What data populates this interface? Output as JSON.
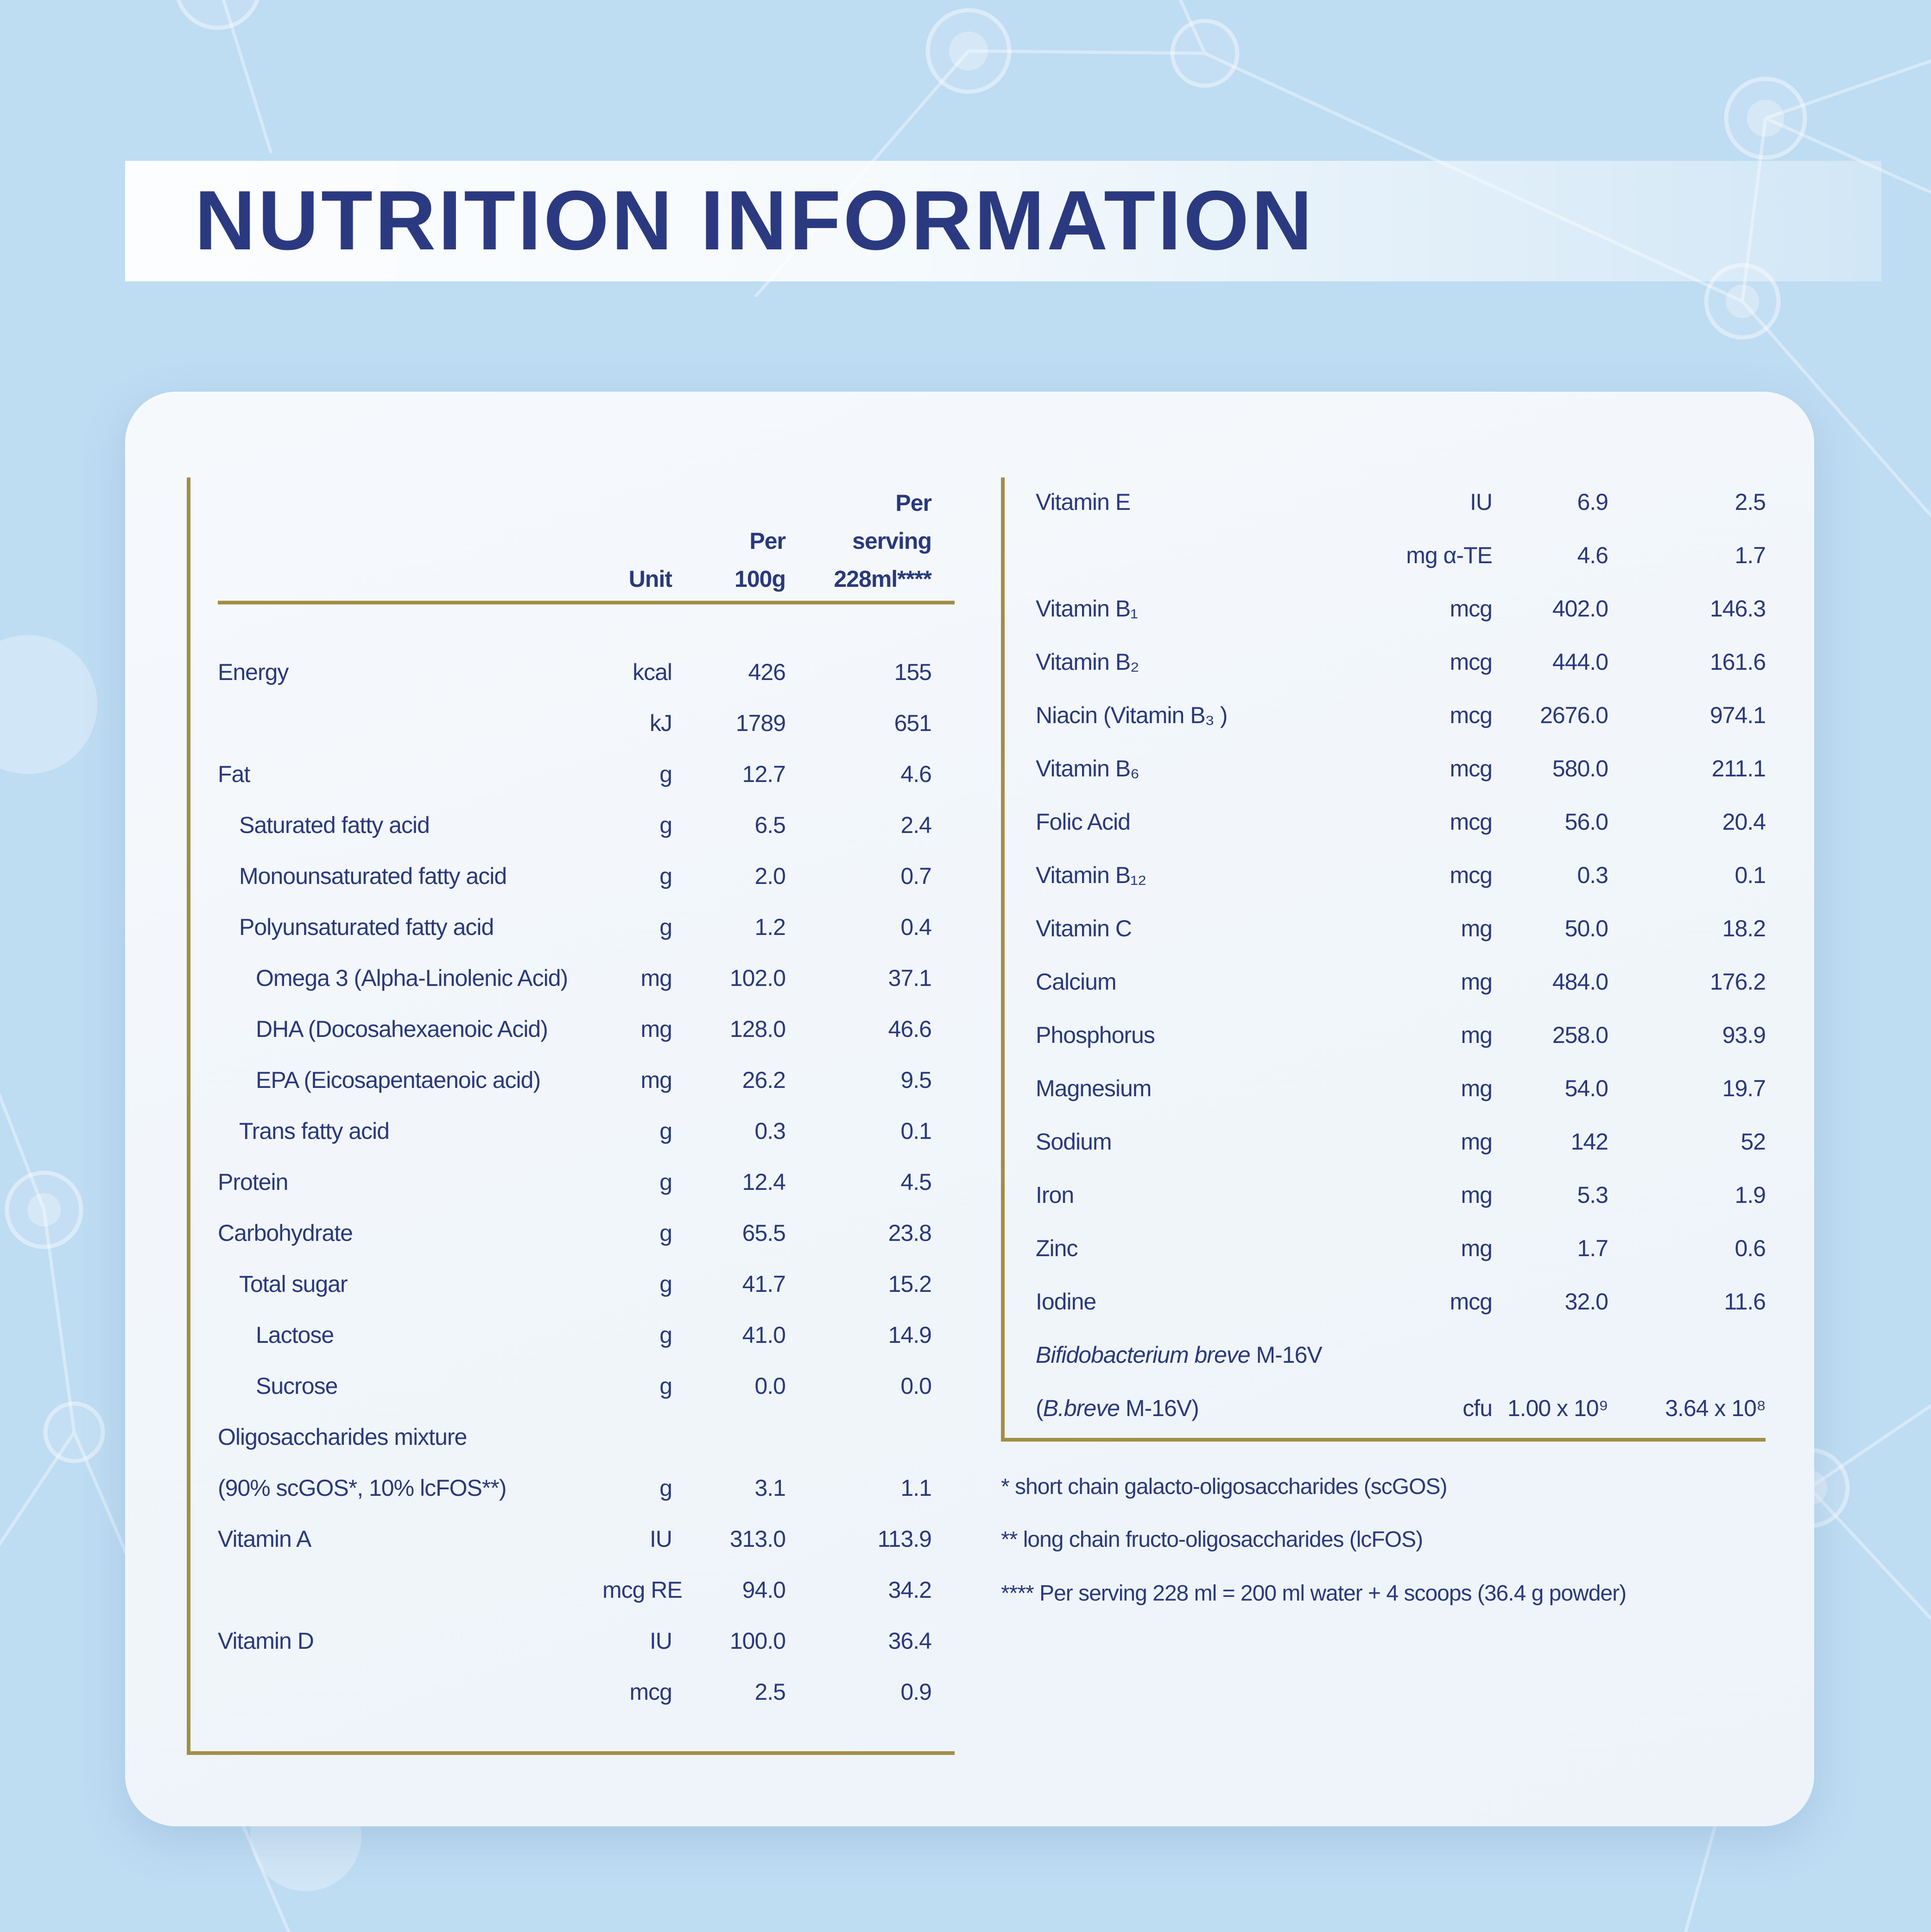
{
  "title": "NUTRITION INFORMATION",
  "colors": {
    "background_blue": "#bedcf2",
    "card_background": "#f2f6fb",
    "navy_text": "#2b3a7e",
    "gold_rule": "#a28e46"
  },
  "table_left": {
    "headers": {
      "unit": "Unit",
      "per_100g": "Per\n100g",
      "per_serving": "Per\nserving\n228ml****"
    },
    "rows": [
      {
        "label": "Energy",
        "indent": 0,
        "unit": "kcal",
        "per_100g": "426",
        "per_serving": "155"
      },
      {
        "label": "",
        "indent": 0,
        "unit": "kJ",
        "per_100g": "1789",
        "per_serving": "651"
      },
      {
        "label": "Fat",
        "indent": 0,
        "unit": "g",
        "per_100g": "12.7",
        "per_serving": "4.6"
      },
      {
        "label": "Saturated fatty acid",
        "indent": 1,
        "unit": "g",
        "per_100g": "6.5",
        "per_serving": "2.4"
      },
      {
        "label": "Monounsaturated fatty acid",
        "indent": 1,
        "unit": "g",
        "per_100g": "2.0",
        "per_serving": "0.7"
      },
      {
        "label": "Polyunsaturated fatty acid",
        "indent": 1,
        "unit": "g",
        "per_100g": "1.2",
        "per_serving": "0.4"
      },
      {
        "label": "Omega 3 (Alpha-Linolenic Acid)",
        "indent": 2,
        "unit": "mg",
        "per_100g": "102.0",
        "per_serving": "37.1"
      },
      {
        "label": "DHA (Docosahexaenoic Acid)",
        "indent": 2,
        "unit": "mg",
        "per_100g": "128.0",
        "per_serving": "46.6"
      },
      {
        "label": "EPA (Eicosapentaenoic acid)",
        "indent": 2,
        "unit": "mg",
        "per_100g": "26.2",
        "per_serving": "9.5"
      },
      {
        "label": "Trans fatty acid",
        "indent": 1,
        "unit": "g",
        "per_100g": "0.3",
        "per_serving": "0.1"
      },
      {
        "label": "Protein",
        "indent": 0,
        "unit": "g",
        "per_100g": "12.4",
        "per_serving": "4.5"
      },
      {
        "label": "Carbohydrate",
        "indent": 0,
        "unit": "g",
        "per_100g": "65.5",
        "per_serving": "23.8"
      },
      {
        "label": "Total sugar",
        "indent": 1,
        "unit": "g",
        "per_100g": "41.7",
        "per_serving": "15.2"
      },
      {
        "label": "Lactose",
        "indent": 2,
        "unit": "g",
        "per_100g": "41.0",
        "per_serving": "14.9"
      },
      {
        "label": "Sucrose",
        "indent": 2,
        "unit": "g",
        "per_100g": "0.0",
        "per_serving": "0.0"
      },
      {
        "label": "Oligosaccharides mixture",
        "indent": 0,
        "unit": "",
        "per_100g": "",
        "per_serving": ""
      },
      {
        "label": "(90% scGOS*, 10% lcFOS**)",
        "indent": 0,
        "unit": "g",
        "per_100g": "3.1",
        "per_serving": "1.1"
      },
      {
        "label": "Vitamin A",
        "indent": 0,
        "unit": "IU",
        "per_100g": "313.0",
        "per_serving": "113.9"
      },
      {
        "label": "",
        "indent": 0,
        "unit": "mcg RE",
        "per_100g": "94.0",
        "per_serving": "34.2"
      },
      {
        "label": "Vitamin D",
        "indent": 0,
        "unit": "IU",
        "per_100g": "100.0",
        "per_serving": "36.4"
      },
      {
        "label": "",
        "indent": 0,
        "unit": "mcg",
        "per_100g": "2.5",
        "per_serving": "0.9"
      }
    ]
  },
  "table_right": {
    "rows": [
      {
        "label": "Vitamin E",
        "indent": 0,
        "unit": "IU",
        "per_100g": "6.9",
        "per_serving": "2.5"
      },
      {
        "label": "",
        "indent": 0,
        "unit": "mg α-TE",
        "per_100g": "4.6",
        "per_serving": "1.7"
      },
      {
        "label": "Vitamin B₁",
        "indent": 0,
        "unit": "mcg",
        "per_100g": "402.0",
        "per_serving": "146.3"
      },
      {
        "label": "Vitamin B₂",
        "indent": 0,
        "unit": "mcg",
        "per_100g": "444.0",
        "per_serving": "161.6"
      },
      {
        "label": "Niacin (Vitamin B₃ )",
        "indent": 0,
        "unit": "mcg",
        "per_100g": "2676.0",
        "per_serving": "974.1"
      },
      {
        "label": "Vitamin B₆",
        "indent": 0,
        "unit": "mcg",
        "per_100g": "580.0",
        "per_serving": "211.1"
      },
      {
        "label": "Folic Acid",
        "indent": 0,
        "unit": "mcg",
        "per_100g": "56.0",
        "per_serving": "20.4"
      },
      {
        "label": "Vitamin B₁₂",
        "indent": 0,
        "unit": "mcg",
        "per_100g": "0.3",
        "per_serving": "0.1"
      },
      {
        "label": "Vitamin C",
        "indent": 0,
        "unit": "mg",
        "per_100g": "50.0",
        "per_serving": "18.2"
      },
      {
        "label": "Calcium",
        "indent": 0,
        "unit": "mg",
        "per_100g": "484.0",
        "per_serving": "176.2"
      },
      {
        "label": "Phosphorus",
        "indent": 0,
        "unit": "mg",
        "per_100g": "258.0",
        "per_serving": "93.9"
      },
      {
        "label": "Magnesium",
        "indent": 0,
        "unit": "mg",
        "per_100g": "54.0",
        "per_serving": "19.7"
      },
      {
        "label": "Sodium",
        "indent": 0,
        "unit": "mg",
        "per_100g": "142",
        "per_serving": "52"
      },
      {
        "label": "Iron",
        "indent": 0,
        "unit": "mg",
        "per_100g": "5.3",
        "per_serving": "1.9"
      },
      {
        "label": "Zinc",
        "indent": 0,
        "unit": "mg",
        "per_100g": "1.7",
        "per_serving": "0.6"
      },
      {
        "label": "Iodine",
        "indent": 0,
        "unit": "mcg",
        "per_100g": "32.0",
        "per_serving": "11.6"
      },
      {
        "label_segments": [
          [
            "Bifidobacterium breve",
            true
          ],
          [
            " M-16V",
            false
          ]
        ],
        "indent": 0,
        "unit": "",
        "per_100g": "",
        "per_serving": ""
      },
      {
        "label_segments": [
          [
            "(",
            false
          ],
          [
            "B.breve",
            true
          ],
          [
            " M-16V)",
            false
          ]
        ],
        "indent": 0,
        "unit": "cfu",
        "per_100g": "1.00 x 10⁹",
        "per_serving": "3.64 x 10⁸"
      }
    ]
  },
  "footnotes": [
    "* short chain galacto-oligosaccharides (scGOS)",
    "** long chain fructo-oligosaccharides (lcFOS)",
    "**** Per serving 228 ml = 200 ml water + 4 scoops (36.4 g powder)"
  ]
}
